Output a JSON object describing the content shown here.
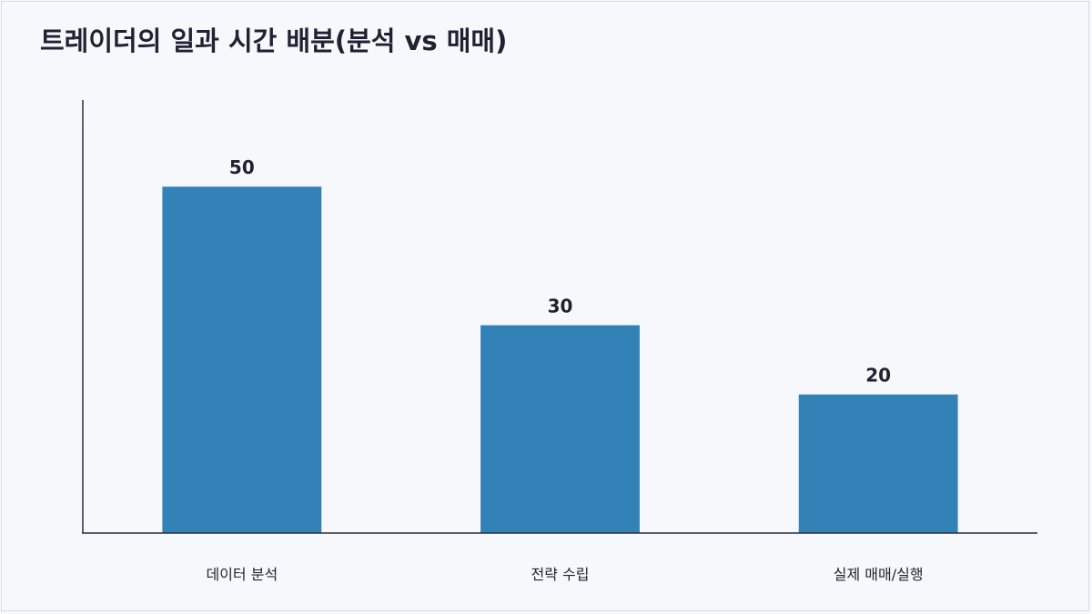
{
  "chart_data": {
    "type": "bar",
    "title": "트레이더의 일과 시간 배분(분석 vs 매매)",
    "categories": [
      "데이터 분석",
      "전략 수립",
      "실제 매매/실행"
    ],
    "values": [
      50,
      30,
      20
    ],
    "xlabel": "",
    "ylabel": "",
    "ylim": [
      0,
      62.5
    ],
    "grid": false,
    "legend": "none",
    "colors": {
      "bar": "#3282b8",
      "text": "#1f2230",
      "axis": "#2b2f3a",
      "background": "#f7f8fc"
    }
  }
}
